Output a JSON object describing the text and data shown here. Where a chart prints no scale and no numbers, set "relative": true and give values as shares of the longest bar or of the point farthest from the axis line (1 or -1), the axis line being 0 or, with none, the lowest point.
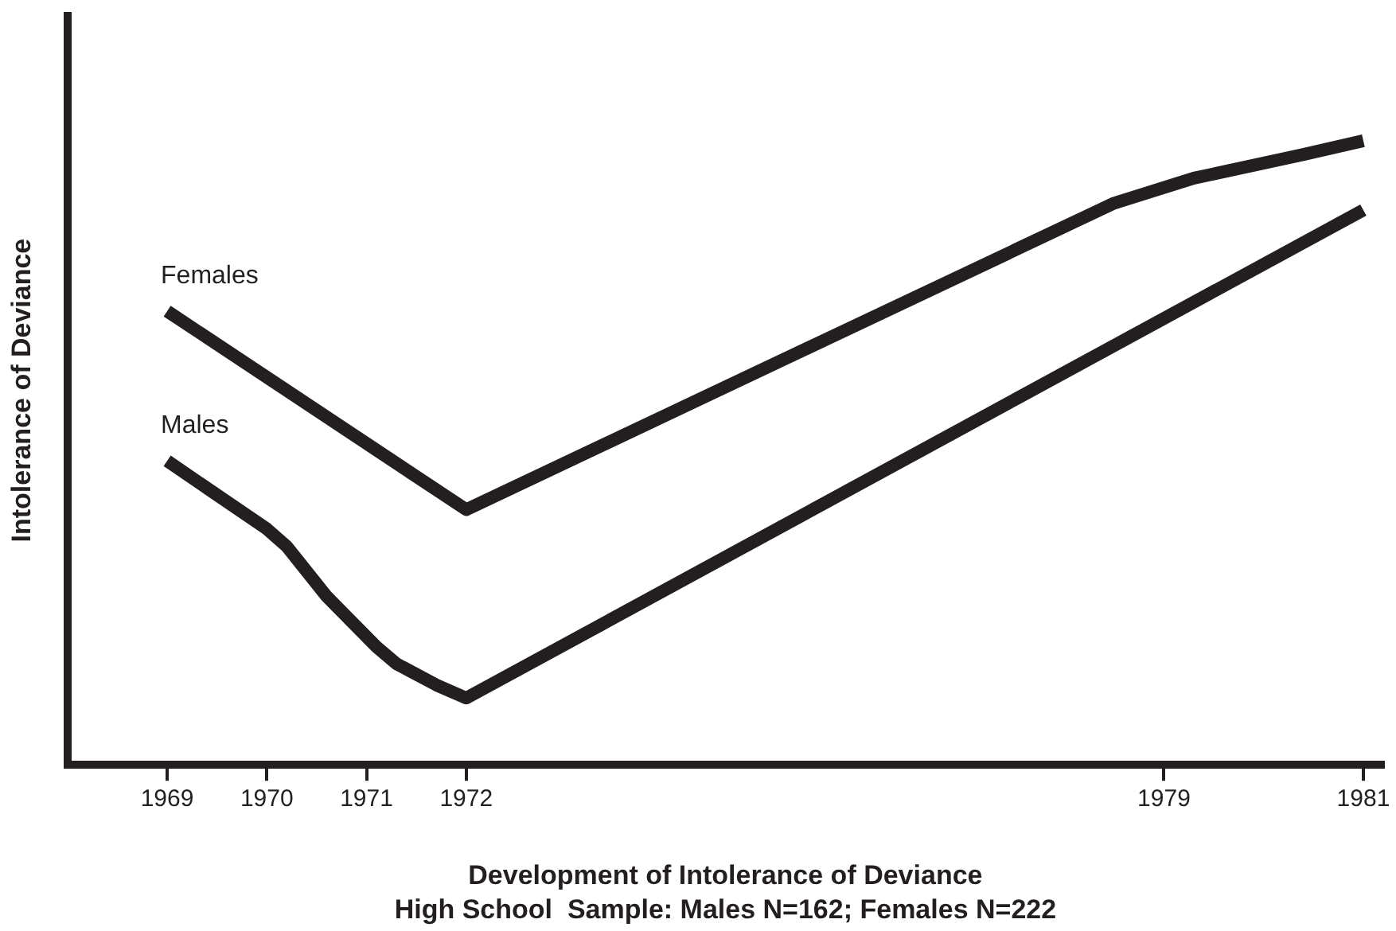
{
  "chart_data": {
    "type": "line",
    "relative": true,
    "xlabel": "Development of Intolerance of Deviance",
    "ylabel": "Intolerance of Deviance",
    "annotations": [
      "High School  Sample: Males N=162; Females N=222"
    ],
    "xlim": [
      1968,
      1981.2
    ],
    "xticks": [
      1969,
      1970,
      1971,
      1972,
      1979,
      1981
    ],
    "grid": false,
    "legend": false,
    "marker": "none",
    "line_style": "solid",
    "series": [
      {
        "name": "Females",
        "color": "#231f20",
        "x": [
          1969,
          1972,
          1978.5,
          1979.3,
          1980.4,
          1981
        ],
        "values": [
          0.727,
          0.409,
          0.9,
          0.94,
          0.978,
          1
        ]
      },
      {
        "name": "Males",
        "color": "#231f20",
        "x": [
          1969,
          1970,
          1970.2,
          1970.6,
          1971.1,
          1971.3,
          1971.7,
          1972,
          1981
        ],
        "values": [
          0.487,
          0.378,
          0.35,
          0.27,
          0.189,
          0.162,
          0.128,
          0.107,
          0.889
        ]
      }
    ]
  }
}
